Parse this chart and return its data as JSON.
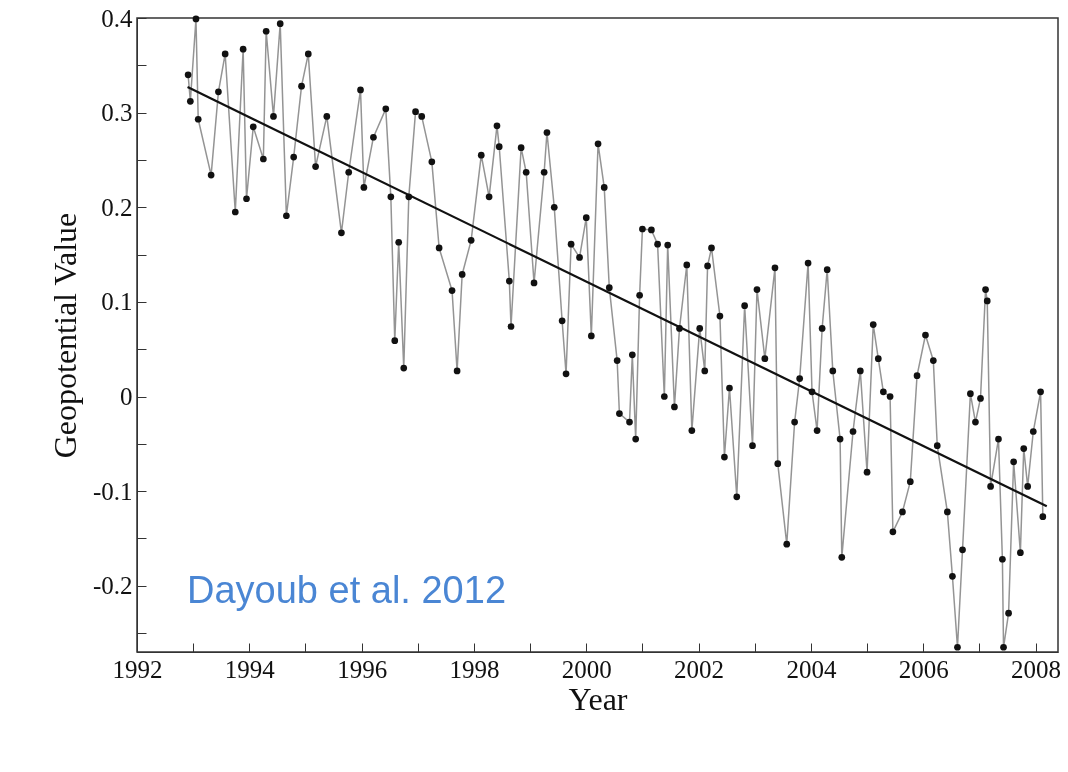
{
  "chart_data": {
    "type": "line",
    "xlabel": "Year",
    "ylabel": "Geopotential Value",
    "annotations": [
      "Dayoub et al. 2012"
    ],
    "xlim": [
      1992,
      2008.4
    ],
    "ylim": [
      -0.27,
      0.4
    ],
    "xticks": [
      1992,
      {
        "value": 1993,
        "label": null
      },
      1994,
      {
        "value": 1995,
        "label": null
      },
      1996,
      {
        "value": 1997,
        "label": null
      },
      1998,
      {
        "value": 1999,
        "label": null
      },
      2000,
      {
        "value": 2001,
        "label": null
      },
      2002,
      {
        "value": 2003,
        "label": null
      },
      2004,
      {
        "value": 2005,
        "label": null
      },
      2006,
      {
        "value": 2007,
        "label": null
      },
      2008
    ],
    "yticks": [
      {
        "value": -0.25,
        "label": null
      },
      -0.2,
      {
        "value": -0.15,
        "label": null
      },
      -0.1,
      {
        "value": -0.05,
        "label": null
      },
      0,
      {
        "value": 0.05,
        "label": null
      },
      0.1,
      {
        "value": 0.15,
        "label": null
      },
      0.2,
      {
        "value": 0.25,
        "label": null
      },
      0.3,
      {
        "value": 0.35,
        "label": null
      },
      0.4
    ],
    "grid": false,
    "marker": "circle",
    "line_style": "solid",
    "x": [
      1992.91,
      1992.95,
      1993.05,
      1993.09,
      1993.32,
      1993.45,
      1993.57,
      1993.75,
      1993.89,
      1993.95,
      1994.07,
      1994.25,
      1994.3,
      1994.43,
      1994.55,
      1994.66,
      1994.79,
      1994.93,
      1995.05,
      1995.18,
      1995.38,
      1995.64,
      1995.77,
      1995.98,
      1996.04,
      1996.21,
      1996.43,
      1996.52,
      1996.59,
      1996.66,
      1996.75,
      1996.84,
      1996.96,
      1997.07,
      1997.25,
      1997.38,
      1997.61,
      1997.7,
      1997.79,
      1997.95,
      1998.13,
      1998.27,
      1998.41,
      1998.45,
      1998.63,
      1998.66,
      1998.84,
      1998.93,
      1999.07,
      1999.25,
      1999.3,
      1999.43,
      1999.57,
      1999.64,
      1999.73,
      1999.88,
      2000.0,
      2000.09,
      2000.21,
      2000.32,
      2000.41,
      2000.55,
      2000.59,
      2000.77,
      2000.82,
      2000.88,
      2000.95,
      2001.0,
      2001.16,
      2001.27,
      2001.39,
      2001.45,
      2001.57,
      2001.66,
      2001.79,
      2001.88,
      2002.02,
      2002.11,
      2002.16,
      2002.23,
      2002.38,
      2002.46,
      2002.55,
      2002.68,
      2002.82,
      2002.96,
      2003.04,
      2003.18,
      2003.36,
      2003.41,
      2003.57,
      2003.71,
      2003.8,
      2003.95,
      2004.02,
      2004.11,
      2004.2,
      2004.29,
      2004.39,
      2004.52,
      2004.55,
      2004.75,
      2004.88,
      2005.0,
      2005.11,
      2005.2,
      2005.29,
      2005.41,
      2005.46,
      2005.63,
      2005.77,
      2005.89,
      2006.04,
      2006.18,
      2006.25,
      2006.43,
      2006.52,
      2006.61,
      2006.7,
      2006.84,
      2006.93,
      2007.02,
      2007.11,
      2007.14,
      2007.2,
      2007.34,
      2007.41,
      2007.43,
      2007.52,
      2007.61,
      2007.73,
      2007.79,
      2007.86,
      2007.96,
      2008.09,
      2008.13
    ],
    "series": [
      {
        "color": "#111111",
        "values": [
          0.34,
          0.312,
          0.399,
          0.293,
          0.234,
          0.322,
          0.362,
          0.195,
          0.367,
          0.209,
          0.285,
          0.251,
          0.386,
          0.296,
          0.394,
          0.191,
          0.253,
          0.328,
          0.362,
          0.243,
          0.296,
          0.173,
          0.237,
          0.324,
          0.221,
          0.274,
          0.304,
          0.211,
          0.059,
          0.163,
          0.03,
          0.211,
          0.301,
          0.296,
          0.248,
          0.157,
          0.112,
          0.027,
          0.129,
          0.165,
          0.255,
          0.211,
          0.286,
          0.264,
          0.122,
          0.074,
          0.263,
          0.237,
          0.12,
          0.237,
          0.279,
          0.2,
          0.08,
          0.024,
          0.161,
          0.147,
          0.189,
          0.064,
          0.267,
          0.221,
          0.115,
          0.038,
          -0.018,
          -0.027,
          0.044,
          -0.045,
          0.107,
          0.177,
          0.176,
          0.161,
          0.0,
          0.16,
          -0.011,
          0.072,
          0.139,
          -0.036,
          0.072,
          0.027,
          0.138,
          0.157,
          0.085,
          -0.064,
          0.009,
          -0.106,
          0.096,
          -0.052,
          0.113,
          0.04,
          0.136,
          -0.071,
          -0.156,
          -0.027,
          0.019,
          0.141,
          0.005,
          -0.036,
          0.072,
          0.134,
          0.027,
          -0.045,
          -0.17,
          -0.037,
          0.027,
          -0.08,
          0.076,
          0.04,
          0.005,
          0.0,
          -0.143,
          -0.122,
          -0.09,
          0.022,
          0.065,
          0.038,
          -0.052,
          -0.122,
          -0.19,
          -0.265,
          -0.162,
          0.003,
          -0.027,
          -0.002,
          0.113,
          0.101,
          -0.095,
          -0.045,
          -0.172,
          -0.265,
          -0.229,
          -0.069,
          -0.165,
          -0.055,
          -0.095,
          -0.037,
          0.005,
          -0.127
        ]
      },
      {
        "type": "line",
        "color": "#111111",
        "marker": "none",
        "x": [
          1992.9,
          2008.2
        ],
        "values": [
          0.327,
          -0.116
        ]
      }
    ]
  }
}
